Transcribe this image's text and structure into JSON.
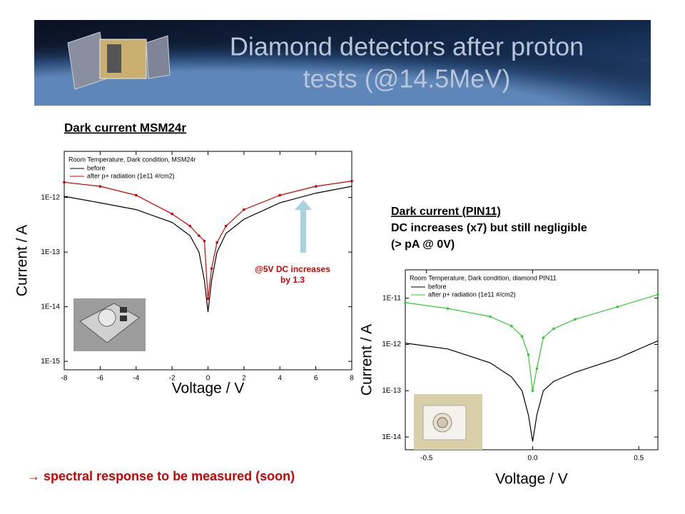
{
  "title_lines": [
    "Diamond detectors after proton",
    "tests (@14.5MeV)"
  ],
  "left_heading": "Dark current MSM24r",
  "annotation_lines": [
    "@5V DC increases",
    "by 1.3"
  ],
  "right_heading_lines": [
    "Dark current (PIN11)",
    "DC increases (x7) but still negligible",
    "(> pA @ 0V)"
  ],
  "conclusion": "→ spectral response to be measured (soon)",
  "chart_data": [
    {
      "type": "line",
      "title": "Room Temperature, Dark condition, MSM24r",
      "x_label": "Voltage / V",
      "y_label": "Current / A",
      "log_y": true,
      "x": [
        -8,
        -6,
        -4,
        -2,
        -1,
        -0.5,
        -0.2,
        0,
        0.2,
        0.5,
        1,
        2,
        4,
        6,
        8
      ],
      "series": [
        {
          "name": "before",
          "color": "#000000",
          "marker": false,
          "values": [
            1.05e-12,
            8e-13,
            6e-13,
            3.5e-13,
            2e-13,
            1e-13,
            3e-14,
            8e-15,
            3e-14,
            1e-13,
            2.2e-13,
            4e-13,
            8e-13,
            1.2e-12,
            1.6e-12
          ]
        },
        {
          "name": "after p+ radiation (1e11 #/cm2)",
          "color": "#d40000",
          "marker": true,
          "values": [
            1.9e-12,
            1.6e-12,
            1.1e-12,
            5e-13,
            3e-13,
            2e-13,
            1.6e-13,
            1.4e-14,
            5e-14,
            1.5e-13,
            3e-13,
            6e-13,
            1.1e-12,
            1.6e-12,
            2e-12
          ]
        }
      ],
      "xlim": [
        -8,
        8
      ],
      "xticks": [
        -8,
        -6,
        -4,
        -2,
        0,
        2,
        4,
        6,
        8
      ],
      "ylim": [
        7e-16,
        7e-12
      ],
      "yticks": [
        {
          "value": 1e-15,
          "label": "1E-15"
        },
        {
          "value": 1e-14,
          "label": "1E-14"
        },
        {
          "value": 1e-13,
          "label": "1E-13"
        },
        {
          "value": 1e-12,
          "label": "1E-12"
        }
      ]
    },
    {
      "type": "line",
      "title": "Room Temperature, Dark condition, diamond PIN11",
      "x_label": "Voltage / V",
      "y_label": "Current / A",
      "log_y": true,
      "x": [
        -0.6,
        -0.4,
        -0.2,
        -0.1,
        -0.05,
        -0.02,
        0,
        0.02,
        0.05,
        0.1,
        0.2,
        0.4,
        0.59
      ],
      "series": [
        {
          "name": "before",
          "color": "#000000",
          "marker": false,
          "values": [
            1.07e-12,
            8e-13,
            4e-13,
            2e-13,
            1e-13,
            3e-14,
            8e-15,
            3e-14,
            1e-13,
            1.6e-13,
            2.5e-13,
            5e-13,
            1.2e-12
          ]
        },
        {
          "name": "after p+ radiation (1e11 #/cm2)",
          "color": "#33cc33",
          "marker": true,
          "values": [
            8e-12,
            6e-12,
            4e-12,
            2.5e-12,
            1.5e-12,
            6e-13,
            1e-13,
            3e-13,
            1.4e-12,
            2.2e-12,
            3.5e-12,
            6.5e-12,
            1.2e-11
          ]
        }
      ],
      "xlim": [
        -0.6,
        0.59
      ],
      "xticks": [
        -0.5,
        {
          "value": 0,
          "label": "0.0"
        },
        0.5
      ],
      "ylim": [
        5.3e-15,
        4.1e-11
      ],
      "yticks": [
        {
          "value": 1e-14,
          "label": "1E-14"
        },
        {
          "value": 1e-13,
          "label": "1E-13"
        },
        {
          "value": 1e-12,
          "label": "1E-12"
        },
        {
          "value": 1e-11,
          "label": "1E-11"
        }
      ]
    }
  ]
}
